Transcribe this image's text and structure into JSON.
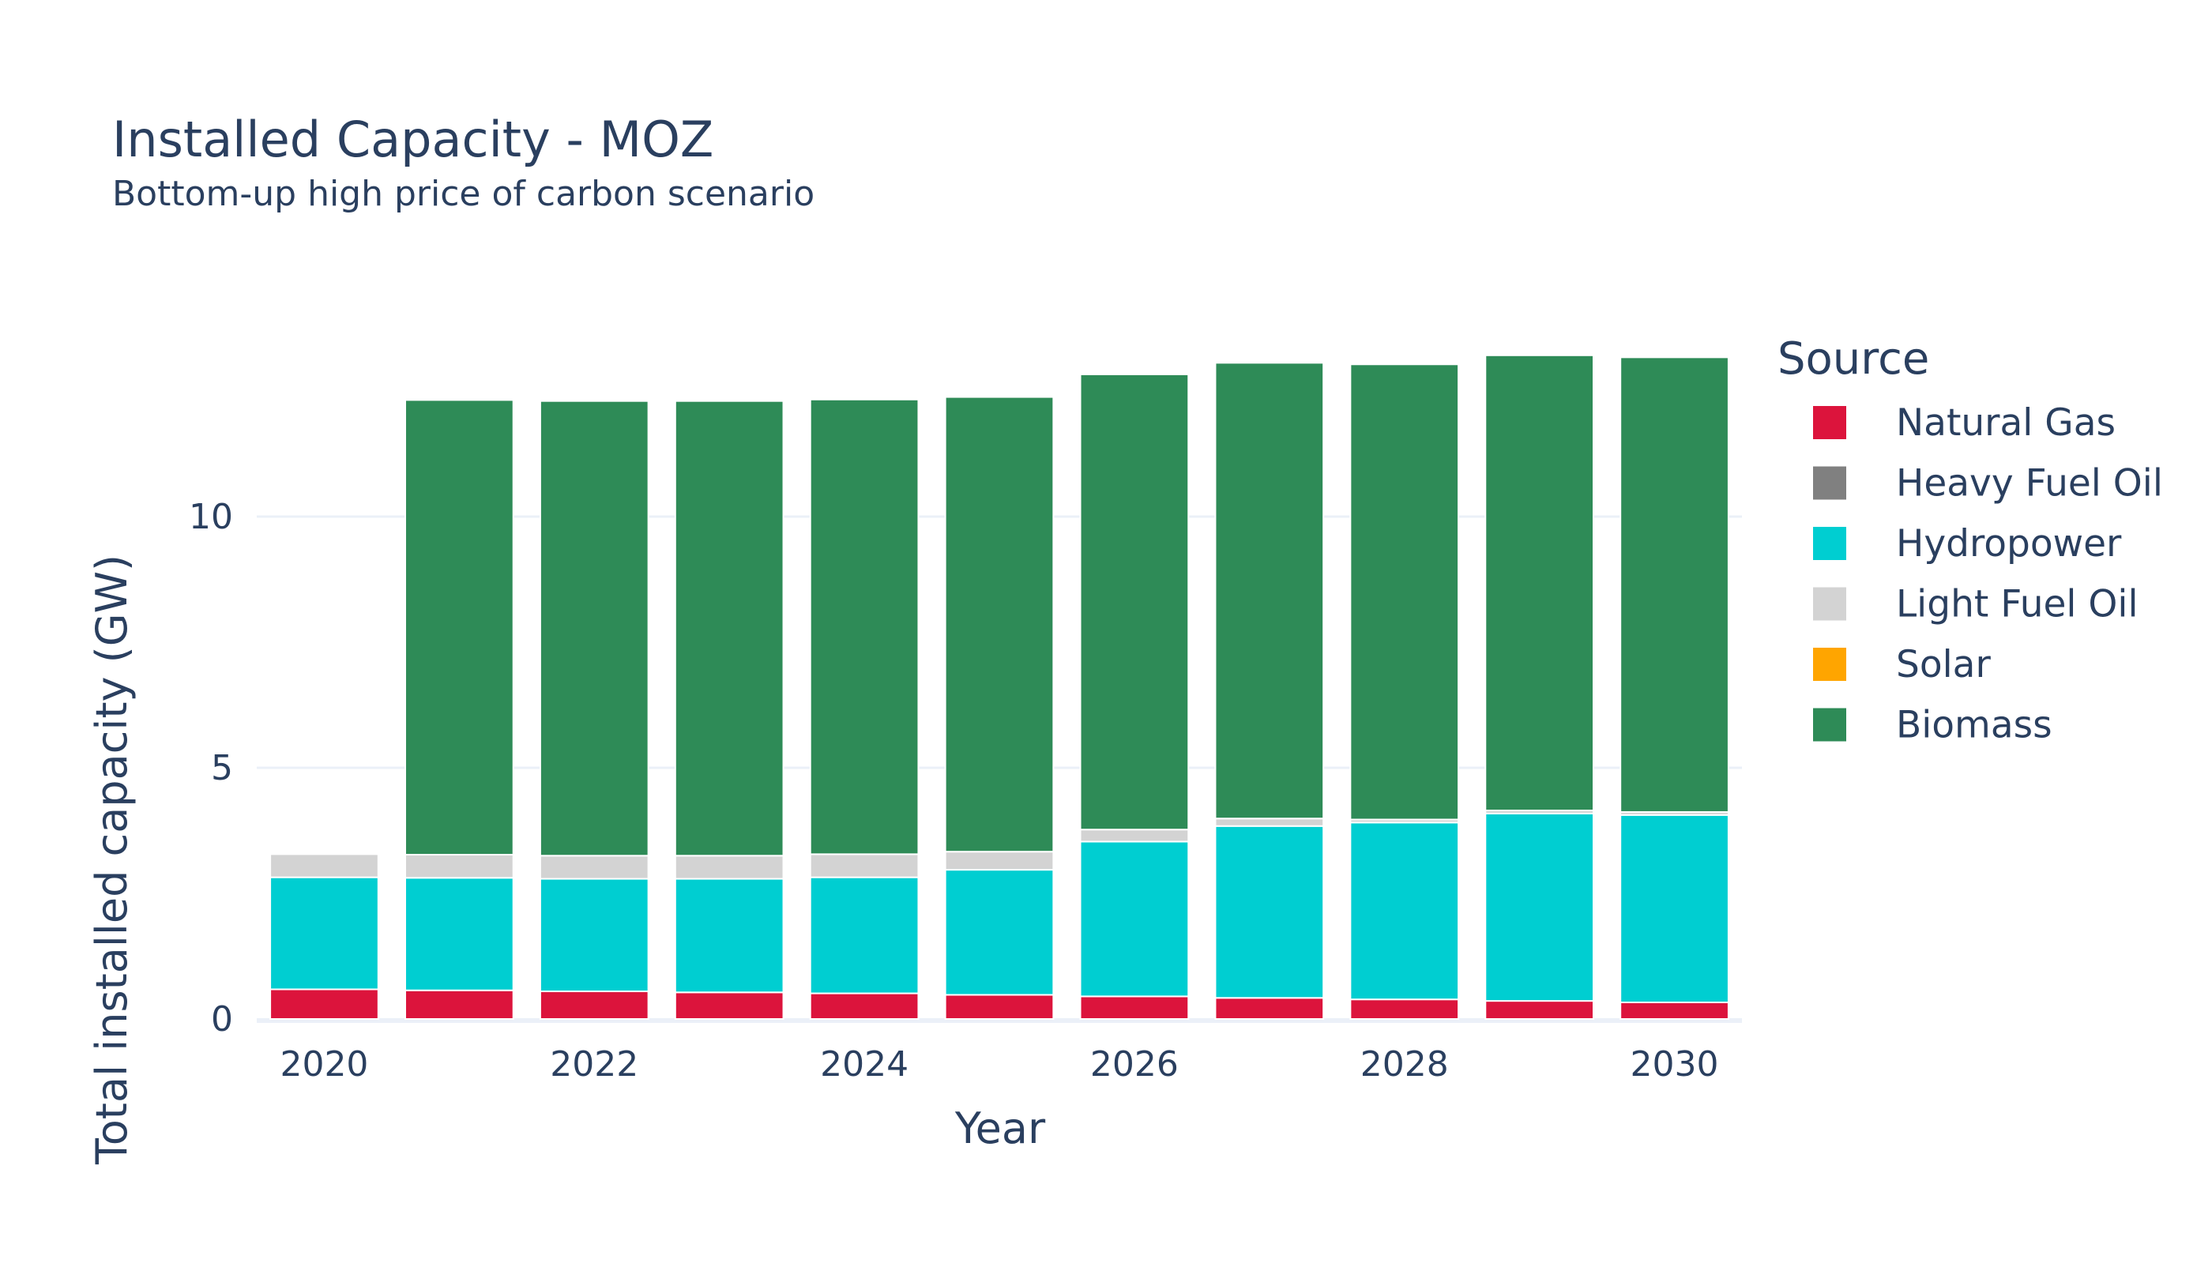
{
  "chart_data": {
    "type": "bar",
    "barmode": "stack",
    "title": "Installed Capacity - MOZ",
    "subtitle": "Bottom-up high price of carbon scenario",
    "xlabel": "Year",
    "ylabel": "Total installed capacity (GW)",
    "legend_title": "Source",
    "legend_position": "right",
    "grid": "horizontal",
    "ylim": [
      0,
      13.6
    ],
    "yticks": [
      0,
      5,
      10
    ],
    "xticks": [
      2020,
      2022,
      2024,
      2026,
      2028,
      2030
    ],
    "categories": [
      2020,
      2021,
      2022,
      2023,
      2024,
      2025,
      2026,
      2027,
      2028,
      2029,
      2030
    ],
    "series": [
      {
        "name": "Natural Gas",
        "color": "#dc143c",
        "values": [
          0.59,
          0.57,
          0.55,
          0.53,
          0.51,
          0.48,
          0.45,
          0.42,
          0.39,
          0.36,
          0.33
        ]
      },
      {
        "name": "Heavy Fuel Oil",
        "color": "#808080",
        "values": [
          0,
          0,
          0,
          0,
          0,
          0,
          0,
          0,
          0,
          0,
          0
        ]
      },
      {
        "name": "Hydropower",
        "color": "#00ced1",
        "values": [
          2.23,
          2.24,
          2.24,
          2.26,
          2.31,
          2.49,
          3.08,
          3.42,
          3.52,
          3.73,
          3.73
        ]
      },
      {
        "name": "Light Fuel Oil",
        "color": "#d3d3d3",
        "values": [
          0.46,
          0.46,
          0.46,
          0.46,
          0.46,
          0.36,
          0.24,
          0.15,
          0.06,
          0.06,
          0.06
        ]
      },
      {
        "name": "Solar",
        "color": "#ffa500",
        "values": [
          0,
          0,
          0,
          0,
          0,
          0,
          0,
          0,
          0,
          0,
          0
        ]
      },
      {
        "name": "Biomass",
        "color": "#2e8b57",
        "values": [
          0,
          9.05,
          9.05,
          9.05,
          9.05,
          9.05,
          9.06,
          9.07,
          9.06,
          9.06,
          9.05
        ]
      }
    ]
  }
}
